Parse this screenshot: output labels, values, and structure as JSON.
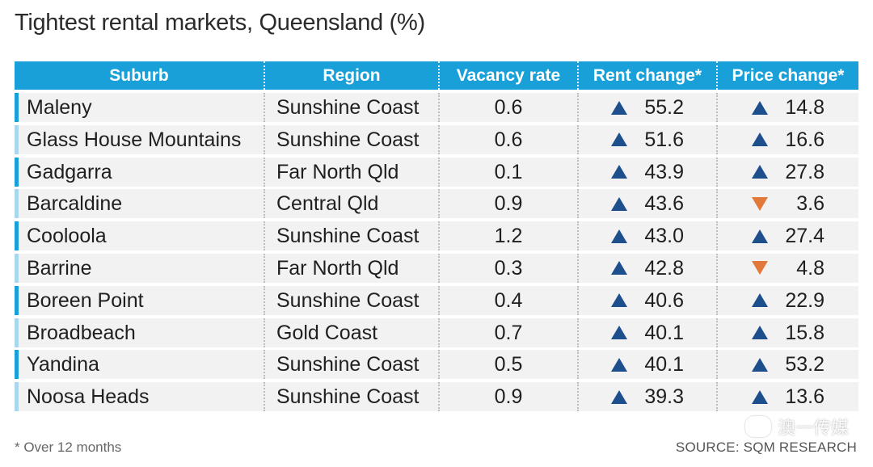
{
  "title": "Tightest rental markets, Queensland (%)",
  "chart_data": {
    "type": "table",
    "title": "Tightest rental markets, Queensland (%)",
    "columns": [
      "Suburb",
      "Region",
      "Vacancy rate",
      "Rent change*",
      "Price change*"
    ],
    "rows": [
      {
        "suburb": "Maleny",
        "region": "Sunshine Coast",
        "vacancy": "0.6",
        "rent": "55.2",
        "rent_dir": "up",
        "price": "14.8",
        "price_dir": "up"
      },
      {
        "suburb": "Glass House Mountains",
        "region": "Sunshine Coast",
        "vacancy": "0.6",
        "rent": "51.6",
        "rent_dir": "up",
        "price": "16.6",
        "price_dir": "up"
      },
      {
        "suburb": "Gadgarra",
        "region": "Far North Qld",
        "vacancy": "0.1",
        "rent": "43.9",
        "rent_dir": "up",
        "price": "27.8",
        "price_dir": "up"
      },
      {
        "suburb": "Barcaldine",
        "region": "Central Qld",
        "vacancy": "0.9",
        "rent": "43.6",
        "rent_dir": "up",
        "price": "3.6",
        "price_dir": "down"
      },
      {
        "suburb": "Cooloola",
        "region": "Sunshine Coast",
        "vacancy": "1.2",
        "rent": "43.0",
        "rent_dir": "up",
        "price": "27.4",
        "price_dir": "up"
      },
      {
        "suburb": "Barrine",
        "region": "Far North Qld",
        "vacancy": "0.3",
        "rent": "42.8",
        "rent_dir": "up",
        "price": "4.8",
        "price_dir": "down"
      },
      {
        "suburb": "Boreen Point",
        "region": "Sunshine Coast",
        "vacancy": "0.4",
        "rent": "40.6",
        "rent_dir": "up",
        "price": "22.9",
        "price_dir": "up"
      },
      {
        "suburb": "Broadbeach",
        "region": "Gold Coast",
        "vacancy": "0.7",
        "rent": "40.1",
        "rent_dir": "up",
        "price": "15.8",
        "price_dir": "up"
      },
      {
        "suburb": "Yandina",
        "region": "Sunshine Coast",
        "vacancy": "0.5",
        "rent": "40.1",
        "rent_dir": "up",
        "price": "53.2",
        "price_dir": "up"
      },
      {
        "suburb": "Noosa Heads",
        "region": "Sunshine Coast",
        "vacancy": "0.9",
        "rent": "39.3",
        "rent_dir": "up",
        "price": "13.6",
        "price_dir": "up"
      }
    ]
  },
  "footnote": "* Over 12 months",
  "source": "SOURCE: SQM RESEARCH",
  "watermark": "澳一传媒",
  "colors": {
    "header": "#1aa0d8",
    "up": "#1d4f8c",
    "down": "#e0793a"
  }
}
